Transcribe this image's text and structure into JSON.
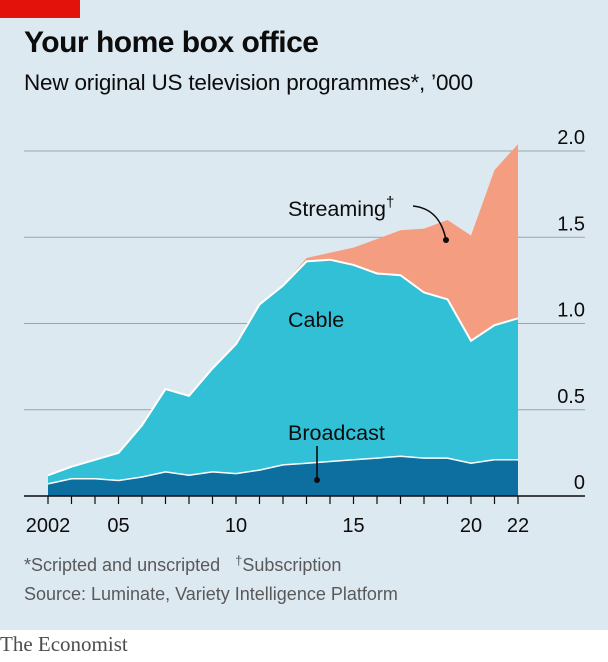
{
  "header": {
    "title": "Your home box office",
    "subtitle": "New original US television programmes*, ’000"
  },
  "colors": {
    "broadcast": "#0d6fa0",
    "cable": "#32c0d6",
    "streaming": "#f59d80",
    "background": "#dde9f1",
    "gridline": "#9aa6ae",
    "brand_red": "#e3120b"
  },
  "chart_data": {
    "type": "area",
    "stacked": true,
    "x": [
      2002,
      2003,
      2004,
      2005,
      2006,
      2007,
      2008,
      2009,
      2010,
      2011,
      2012,
      2013,
      2014,
      2015,
      2016,
      2017,
      2018,
      2019,
      2020,
      2021,
      2022
    ],
    "x_tick_labels": [
      {
        "x": 2002,
        "label": "2002"
      },
      {
        "x": 2005,
        "label": "05"
      },
      {
        "x": 2010,
        "label": "10"
      },
      {
        "x": 2015,
        "label": "15"
      },
      {
        "x": 2020,
        "label": "20"
      },
      {
        "x": 2022,
        "label": "22"
      }
    ],
    "y_ticks": [
      {
        "value": 0,
        "label": "0"
      },
      {
        "value": 0.5,
        "label": "0.5"
      },
      {
        "value": 1.0,
        "label": "1.0"
      },
      {
        "value": 1.5,
        "label": "1.5"
      },
      {
        "value": 2.0,
        "label": "2.0"
      }
    ],
    "ylim": [
      0,
      2.0
    ],
    "grid": true,
    "y_axis_side": "right",
    "series": [
      {
        "name": "Broadcast",
        "values": [
          0.07,
          0.1,
          0.1,
          0.09,
          0.11,
          0.14,
          0.12,
          0.14,
          0.13,
          0.15,
          0.18,
          0.19,
          0.2,
          0.21,
          0.22,
          0.23,
          0.22,
          0.22,
          0.19,
          0.21,
          0.21
        ]
      },
      {
        "name": "Cable",
        "values": [
          0.05,
          0.07,
          0.11,
          0.16,
          0.3,
          0.48,
          0.46,
          0.6,
          0.75,
          0.96,
          1.04,
          1.17,
          1.17,
          1.13,
          1.07,
          1.05,
          0.96,
          0.92,
          0.71,
          0.78,
          0.82
        ]
      },
      {
        "name": "Streaming",
        "values": [
          0,
          0,
          0,
          0,
          0,
          0,
          0,
          0,
          0,
          0,
          0,
          0.02,
          0.04,
          0.1,
          0.2,
          0.26,
          0.37,
          0.46,
          0.61,
          0.9,
          1.01
        ]
      }
    ],
    "labels": {
      "streaming": "Streaming",
      "streaming_mark": "†",
      "cable": "Cable",
      "broadcast": "Broadcast"
    }
  },
  "footnotes": {
    "scripted": "*Scripted and unscripted",
    "dagger": "†",
    "subscription": "Subscription",
    "source": "Source: Luminate, Variety Intelligence Platform"
  },
  "brand": "The Economist"
}
